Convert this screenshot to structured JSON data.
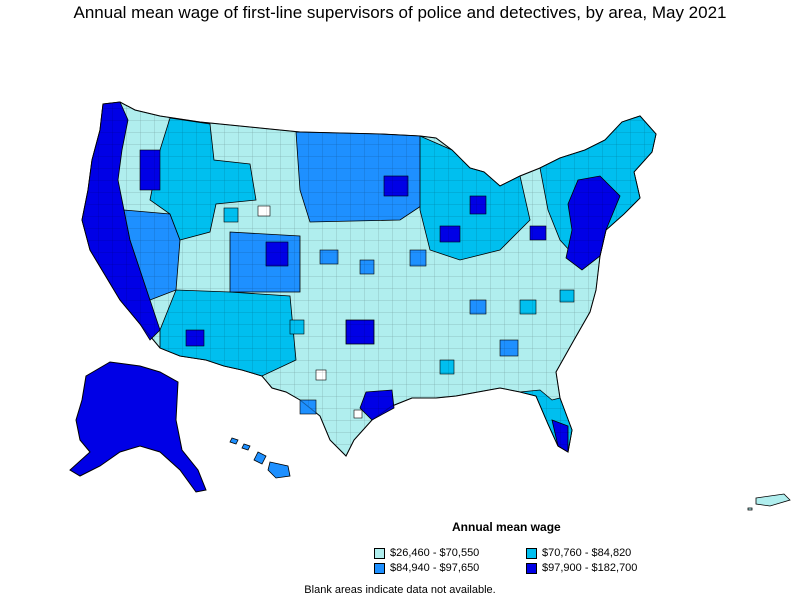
{
  "title": "Annual mean wage of first-line supervisors of police and detectives, by area, May 2021",
  "legend": {
    "title": "Annual mean wage",
    "items": [
      {
        "label": "$26,460 - $70,550",
        "color": "#b0eeee"
      },
      {
        "label": "$70,760 - $84,820",
        "color": "#00bfef"
      },
      {
        "label": "$84,940 - $97,650",
        "color": "#1e90ff"
      },
      {
        "label": "$97,900 - $182,700",
        "color": "#0000e6"
      }
    ]
  },
  "footnote": "Blank areas indicate data not available.",
  "colors": {
    "tier1": "#b0eeee",
    "tier2": "#00bfef",
    "tier3": "#1e90ff",
    "tier4": "#0000e6",
    "border": "#000000"
  }
}
